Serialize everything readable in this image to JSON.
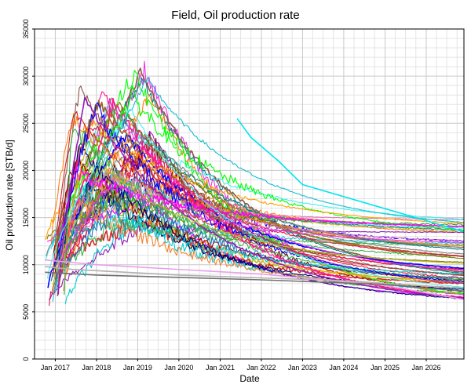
{
  "chart_data": {
    "type": "line",
    "title": "Field, Oil production rate",
    "xlabel": "Date",
    "ylabel": "Oil production rate [STB/d]",
    "ylim": [
      0,
      35000
    ],
    "xlim": [
      "2016-07-01",
      "2026-12-01"
    ],
    "y_ticks": [
      0,
      5000,
      10000,
      15000,
      20000,
      25000,
      30000,
      35000
    ],
    "x_ticks": [
      "Jan 2017",
      "Jan 2018",
      "Jan 2019",
      "Jan 2020",
      "Jan 2021",
      "Jan 2022",
      "Jan 2023",
      "Jan 2024",
      "Jan 2025",
      "Jan 2026"
    ],
    "grid": true,
    "legend": "none",
    "colors": [
      "#e6194b",
      "#3cb44b",
      "#0000ff",
      "#f58231",
      "#911eb4",
      "#46f0f0",
      "#f032e6",
      "#bcbd22",
      "#008080",
      "#9a6324",
      "#800000",
      "#2ca02c",
      "#ff7f0e",
      "#1f77b4",
      "#d62728",
      "#00ced1",
      "#ff1493",
      "#808000",
      "#7f7f7f",
      "#e377c2",
      "#17becf",
      "#8c564b",
      "#00ff00",
      "#ff00ff",
      "#000080",
      "#ffa500"
    ],
    "series_profile": {
      "count": 60,
      "start_date_range": [
        "2016-10-01",
        "2017-04-01"
      ],
      "start_value_range": [
        5800,
        13000
      ],
      "peak_date_range": [
        "2017-06-01",
        "2019-06-01"
      ],
      "peak_value_range": [
        11500,
        31000
      ],
      "end_date": "2026-12-01",
      "end_value_range": [
        6300,
        15000
      ]
    },
    "notable_series": [
      {
        "color": "#00e5ee",
        "points": [
          [
            "2021-06-01",
            25500
          ],
          [
            "2021-10-01",
            23500
          ],
          [
            "2022-06-01",
            21000
          ],
          [
            "2023-01-01",
            18500
          ],
          [
            "2026-12-01",
            13500
          ]
        ]
      },
      {
        "color": "#b0b0b0",
        "points": [
          [
            "2016-10-01",
            9800
          ],
          [
            "2017-06-01",
            9500
          ],
          [
            "2020-01-01",
            8900
          ],
          [
            "2024-01-01",
            8300
          ],
          [
            "2026-12-01",
            7500
          ]
        ]
      },
      {
        "color": "#e8a0e8",
        "points": [
          [
            "2016-10-01",
            10500
          ],
          [
            "2018-01-01",
            10000
          ],
          [
            "2022-01-01",
            9000
          ],
          [
            "2025-01-01",
            7800
          ],
          [
            "2026-12-01",
            6300
          ]
        ]
      },
      {
        "color": "#707070",
        "points": [
          [
            "2016-10-01",
            9200
          ],
          [
            "2018-01-01",
            8900
          ],
          [
            "2022-01-01",
            8400
          ],
          [
            "2025-01-01",
            7900
          ],
          [
            "2026-12-01",
            7200
          ]
        ]
      }
    ]
  }
}
